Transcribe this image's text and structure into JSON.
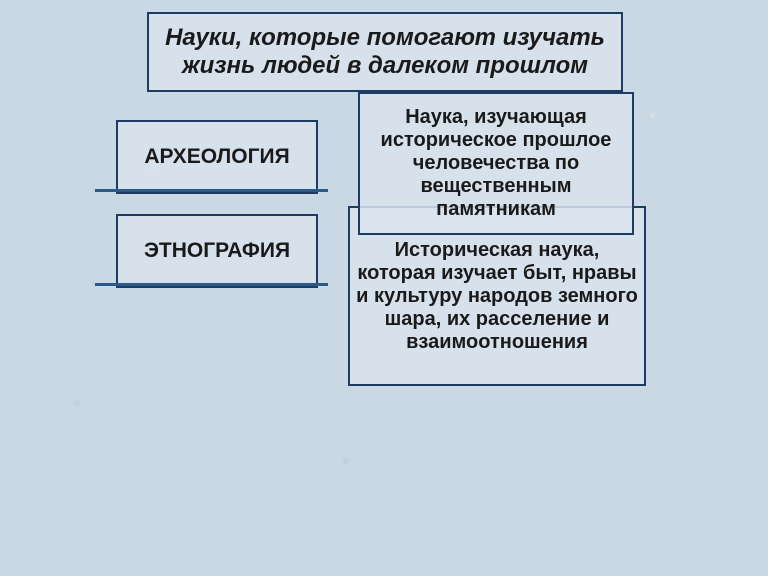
{
  "slide": {
    "background_color": "#c9d8e3",
    "box_bg": "#d9e3ed",
    "border_color": "#1e3b63",
    "underline_color": "#2b5a88",
    "title": {
      "text": "Науки, которые помогают изучать жизнь людей в далеком прошлом",
      "font_size": 24,
      "font_weight": "bold",
      "font_style": "italic"
    },
    "term1": {
      "text": "АРХЕОЛОГИЯ",
      "font_size": 21,
      "font_weight": "bold"
    },
    "term2": {
      "text": "ЭТНОГРАФИЯ",
      "font_size": 21,
      "font_weight": "bold"
    },
    "def1": {
      "text": "Наука, изучающая историческое прошлое человечества по вещественным памятникам",
      "font_size": 20,
      "font_weight": "bold"
    },
    "def2": {
      "text": "Историческая наука, которая изучает быт, нравы и культуру народов земного шара, их расселение и взаимоотношения",
      "font_size": 20,
      "font_weight": "bold"
    }
  }
}
